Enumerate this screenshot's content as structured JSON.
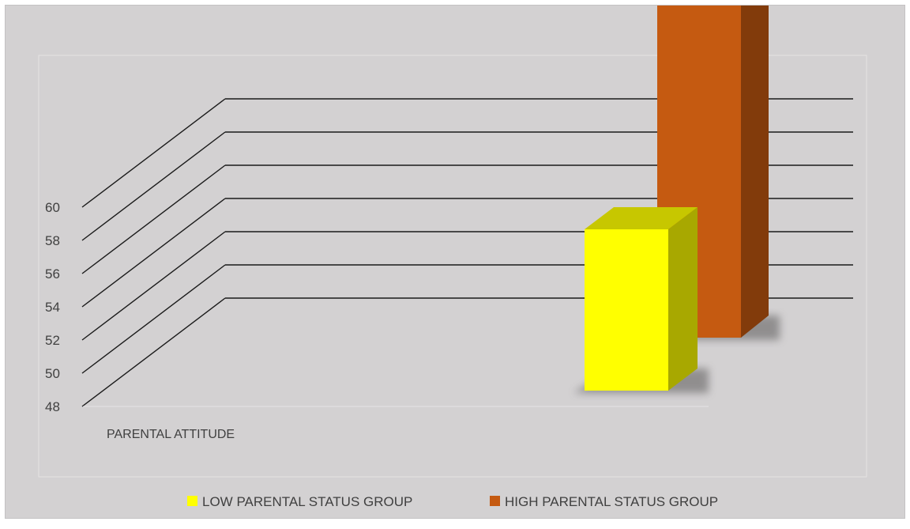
{
  "chart_data": {
    "type": "bar",
    "title": "",
    "categories": [
      "PARENTAL ATTITUDE"
    ],
    "series": [
      {
        "name": "LOW PARENTAL STATUS GROUP",
        "values": [
          54.0
        ],
        "color": "#ffff00"
      },
      {
        "name": "HIGH PARENTAL STATUS GROUP",
        "values": [
          60.5
        ],
        "color": "#c55a11"
      }
    ],
    "ylim": [
      48,
      60
    ],
    "yticks": [
      "48",
      "50",
      "52",
      "54",
      "56",
      "58",
      "60"
    ],
    "grid": true,
    "three_d": true,
    "legend_position": "bottom"
  }
}
